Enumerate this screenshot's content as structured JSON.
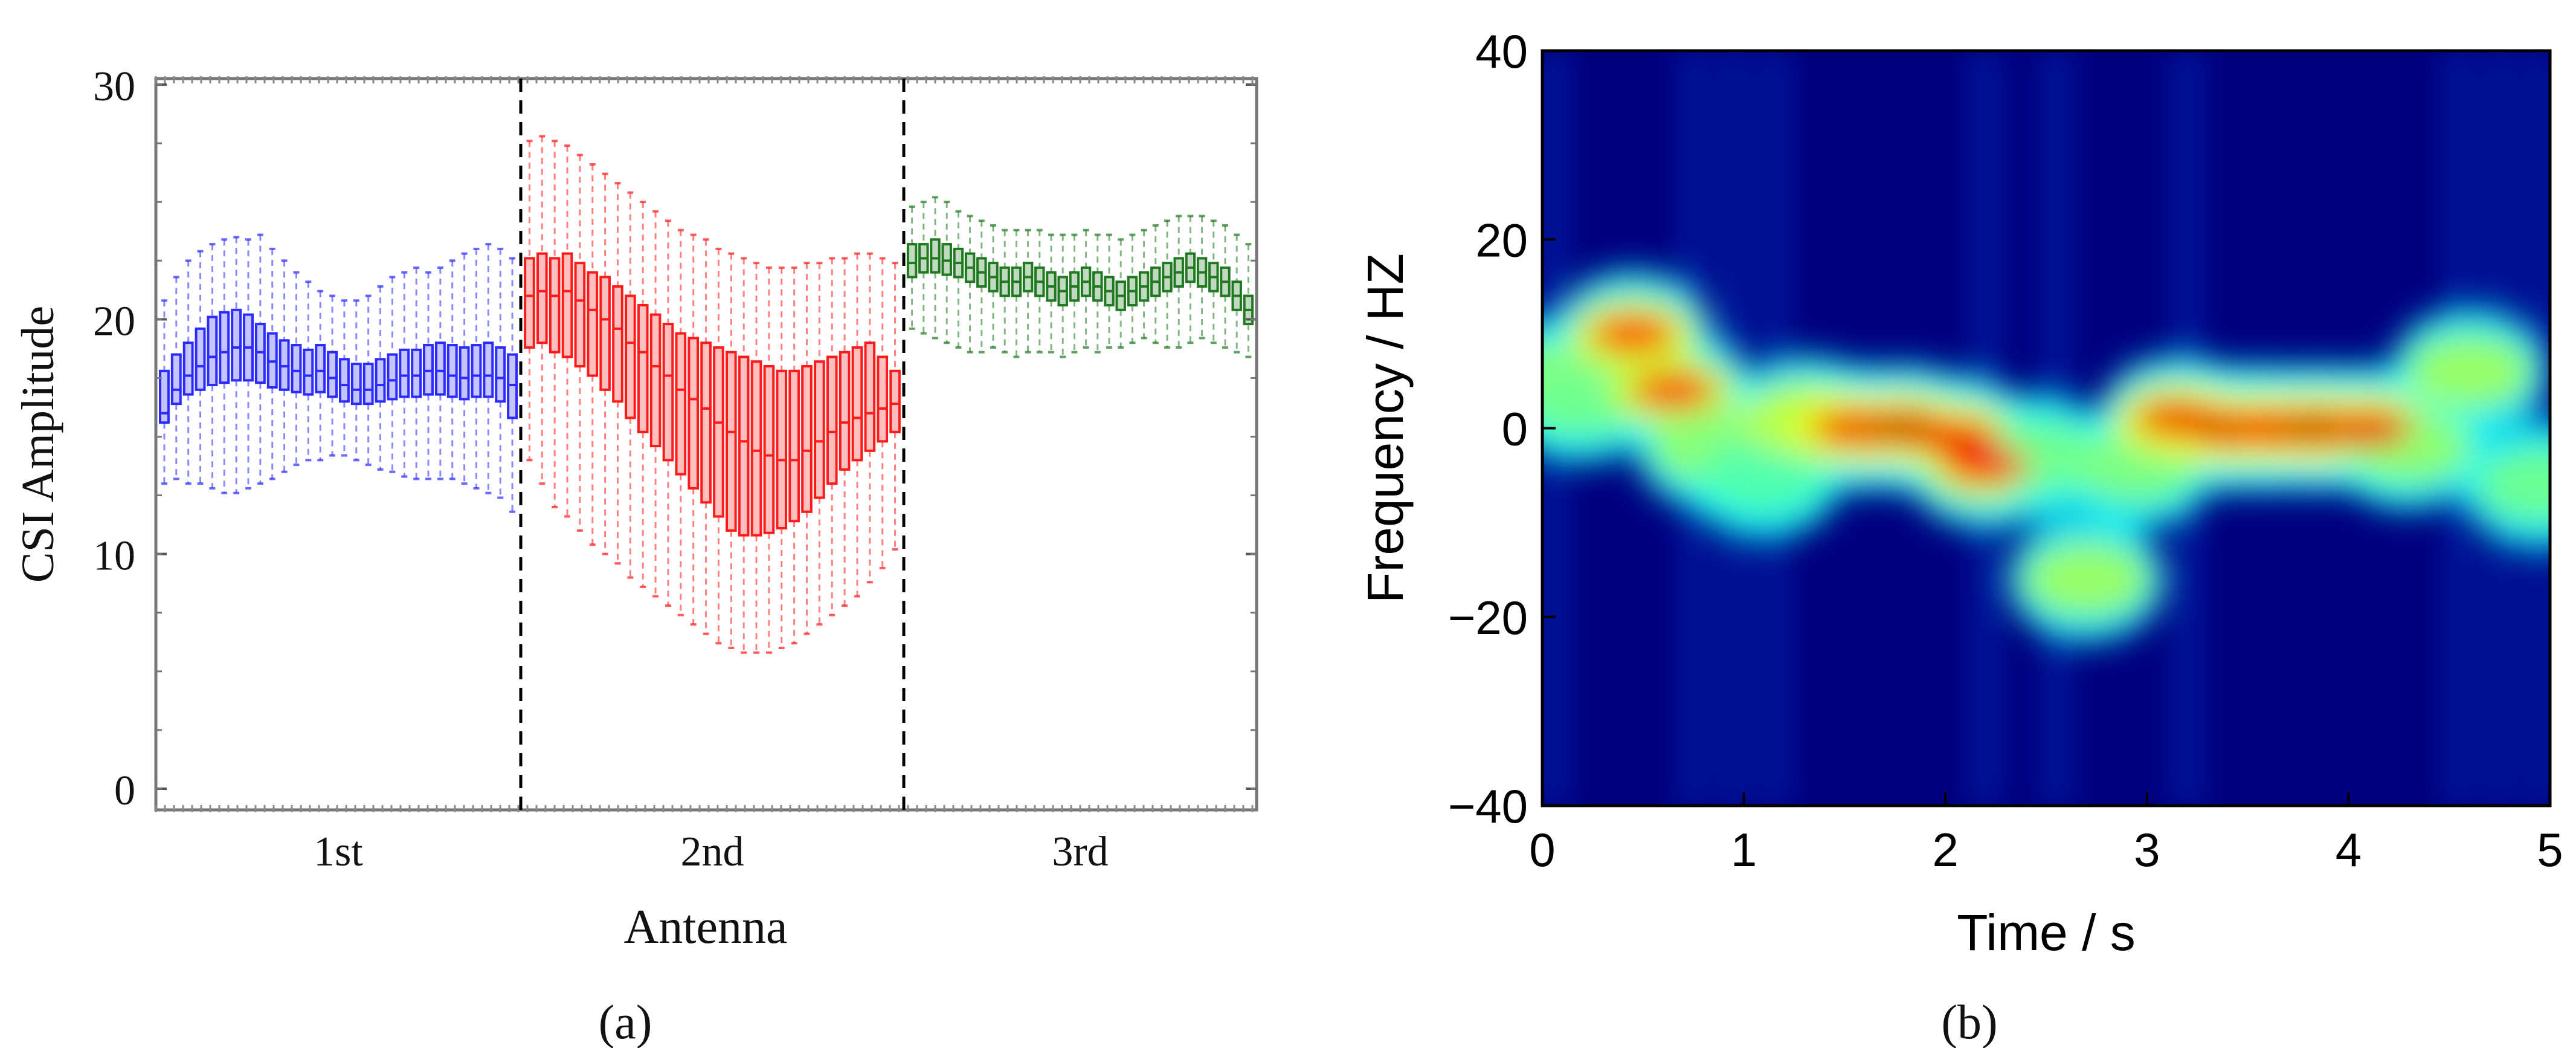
{
  "figure": {
    "panel_a_label": "(a)",
    "panel_b_label": "(b)"
  },
  "colors": {
    "antenna1": "#2b2bff",
    "antenna2": "#ff1a1a",
    "antenna3": "#1f7a1f",
    "spec_bg": "#00007f"
  },
  "chart_data": [
    {
      "type": "box",
      "title": "",
      "xlabel": "Antenna",
      "ylabel": "CSI Amplitude",
      "ylim": [
        0,
        30
      ],
      "yticks": [
        0,
        10,
        20,
        30
      ],
      "grid": false,
      "categories": [
        "1st",
        "2nd",
        "3rd"
      ],
      "boxes_per_group": 30,
      "series": [
        {
          "name": "1st",
          "color": "#2b2bff",
          "median": [
            16.0,
            17.0,
            17.6,
            18.0,
            18.4,
            18.6,
            18.8,
            18.8,
            18.6,
            18.2,
            18.0,
            17.8,
            17.6,
            17.8,
            17.5,
            17.2,
            17.0,
            17.0,
            17.2,
            17.4,
            17.6,
            17.6,
            17.8,
            17.8,
            17.6,
            17.5,
            17.6,
            17.6,
            17.5,
            17.2
          ],
          "q1": [
            15.6,
            16.4,
            16.8,
            17.0,
            17.2,
            17.3,
            17.4,
            17.4,
            17.3,
            17.1,
            17.0,
            16.9,
            16.8,
            16.9,
            16.7,
            16.5,
            16.4,
            16.4,
            16.5,
            16.6,
            16.7,
            16.7,
            16.8,
            16.8,
            16.7,
            16.6,
            16.7,
            16.7,
            16.5,
            15.8
          ],
          "q3": [
            17.8,
            18.5,
            19.0,
            19.6,
            20.1,
            20.3,
            20.4,
            20.2,
            19.8,
            19.4,
            19.1,
            18.9,
            18.7,
            18.9,
            18.6,
            18.3,
            18.1,
            18.1,
            18.3,
            18.5,
            18.7,
            18.7,
            18.9,
            19.0,
            18.9,
            18.8,
            18.9,
            19.0,
            18.8,
            18.5
          ],
          "whisker_low": [
            13.0,
            13.2,
            13.0,
            13.0,
            12.8,
            12.6,
            12.6,
            12.8,
            13.0,
            13.2,
            13.5,
            13.8,
            14.0,
            14.0,
            14.2,
            14.2,
            14.0,
            13.8,
            13.6,
            13.5,
            13.3,
            13.2,
            13.2,
            13.2,
            13.2,
            13.0,
            12.8,
            12.6,
            12.4,
            11.8
          ],
          "whisker_high": [
            20.8,
            21.8,
            22.5,
            22.9,
            23.2,
            23.4,
            23.5,
            23.4,
            23.6,
            23.0,
            22.5,
            22.0,
            21.6,
            21.2,
            21.0,
            20.8,
            20.8,
            21.0,
            21.4,
            21.8,
            22.0,
            22.2,
            22.0,
            22.2,
            22.5,
            22.8,
            23.0,
            23.2,
            23.0,
            22.6
          ]
        },
        {
          "name": "2nd",
          "color": "#ff1a1a",
          "median": [
            21.0,
            21.2,
            21.0,
            21.2,
            20.8,
            20.4,
            20.0,
            19.6,
            19.0,
            18.6,
            18.0,
            17.6,
            17.0,
            16.6,
            16.2,
            15.6,
            15.2,
            14.8,
            14.4,
            14.2,
            14.0,
            14.0,
            14.4,
            14.8,
            15.2,
            15.6,
            15.8,
            16.0,
            16.2,
            16.4
          ],
          "q1": [
            18.8,
            19.0,
            18.6,
            18.4,
            18.0,
            17.6,
            17.0,
            16.5,
            15.8,
            15.2,
            14.6,
            14.0,
            13.4,
            12.8,
            12.2,
            11.6,
            11.0,
            10.8,
            10.8,
            10.9,
            11.1,
            11.4,
            11.8,
            12.4,
            13.0,
            13.6,
            14.0,
            14.4,
            14.8,
            15.2
          ],
          "q3": [
            22.6,
            22.8,
            22.6,
            22.8,
            22.4,
            22.0,
            21.8,
            21.4,
            21.0,
            20.6,
            20.2,
            19.8,
            19.4,
            19.2,
            19.0,
            18.8,
            18.6,
            18.4,
            18.2,
            18.0,
            17.8,
            17.8,
            18.0,
            18.2,
            18.4,
            18.6,
            18.8,
            19.0,
            18.4,
            17.8
          ],
          "whisker_low": [
            14.0,
            13.0,
            12.0,
            11.6,
            11.0,
            10.4,
            10.0,
            9.6,
            9.0,
            8.6,
            8.2,
            7.8,
            7.4,
            7.0,
            6.6,
            6.2,
            6.0,
            5.8,
            5.8,
            5.8,
            6.0,
            6.2,
            6.6,
            7.0,
            7.4,
            7.8,
            8.2,
            8.8,
            9.4,
            10.2
          ],
          "whisker_high": [
            27.6,
            27.8,
            27.6,
            27.4,
            27.0,
            26.6,
            26.2,
            25.8,
            25.4,
            25.0,
            24.6,
            24.2,
            23.8,
            23.6,
            23.4,
            23.0,
            22.8,
            22.6,
            22.4,
            22.2,
            22.2,
            22.2,
            22.4,
            22.4,
            22.6,
            22.6,
            22.8,
            22.8,
            22.6,
            22.4
          ]
        },
        {
          "name": "3rd",
          "color": "#1f7a1f",
          "median": [
            22.4,
            22.6,
            22.6,
            22.5,
            22.4,
            22.2,
            22.0,
            21.8,
            21.6,
            21.6,
            21.8,
            21.6,
            21.4,
            21.2,
            21.4,
            21.6,
            21.4,
            21.2,
            21.0,
            21.2,
            21.4,
            21.6,
            21.8,
            22.0,
            22.2,
            22.0,
            21.8,
            21.6,
            21.0,
            20.4
          ],
          "q1": [
            21.8,
            22.0,
            22.0,
            21.9,
            21.8,
            21.6,
            21.4,
            21.2,
            21.0,
            21.0,
            21.2,
            21.0,
            20.8,
            20.6,
            20.8,
            21.0,
            20.8,
            20.6,
            20.4,
            20.6,
            20.8,
            21.0,
            21.2,
            21.4,
            21.6,
            21.4,
            21.2,
            21.0,
            20.4,
            19.8
          ],
          "q3": [
            23.2,
            23.2,
            23.4,
            23.2,
            23.0,
            22.8,
            22.6,
            22.4,
            22.2,
            22.2,
            22.4,
            22.2,
            22.0,
            21.8,
            22.0,
            22.2,
            22.0,
            21.8,
            21.6,
            21.8,
            22.0,
            22.2,
            22.4,
            22.6,
            22.8,
            22.6,
            22.4,
            22.2,
            21.6,
            21.0
          ],
          "whisker_low": [
            19.6,
            19.4,
            19.2,
            19.0,
            18.8,
            18.6,
            18.6,
            18.8,
            18.6,
            18.4,
            18.6,
            18.6,
            18.6,
            18.4,
            18.6,
            18.8,
            18.6,
            18.8,
            18.8,
            19.0,
            19.2,
            19.0,
            18.8,
            18.8,
            19.0,
            19.2,
            19.0,
            18.8,
            18.6,
            18.4
          ],
          "whisker_high": [
            24.8,
            25.0,
            25.2,
            25.0,
            24.6,
            24.4,
            24.2,
            24.0,
            23.8,
            23.8,
            23.8,
            23.8,
            23.6,
            23.6,
            23.6,
            23.8,
            23.6,
            23.6,
            23.4,
            23.6,
            23.8,
            24.0,
            24.2,
            24.4,
            24.4,
            24.4,
            24.2,
            24.0,
            23.6,
            23.2
          ]
        }
      ]
    },
    {
      "type": "heatmap",
      "title": "",
      "xlabel": "Time / s",
      "ylabel": "Frequency / HZ",
      "xlim": [
        0,
        5
      ],
      "ylim": [
        -40,
        40
      ],
      "xticks": [
        "0",
        "1",
        "2",
        "3",
        "4",
        "5"
      ],
      "xtick_values": [
        0,
        1,
        2,
        3,
        4,
        5
      ],
      "yticks": [
        "40",
        "20",
        "0",
        "−20",
        "−40"
      ],
      "ytick_values": [
        40,
        20,
        0,
        -20,
        -40
      ],
      "colormap": "jet",
      "energy_track": [
        {
          "t": 0.0,
          "f": 5,
          "intensity": 0.55
        },
        {
          "t": 0.2,
          "f": 3,
          "intensity": 0.45
        },
        {
          "t": 0.45,
          "f": 10,
          "intensity": 0.8
        },
        {
          "t": 0.65,
          "f": 4,
          "intensity": 0.75
        },
        {
          "t": 0.85,
          "f": -2,
          "intensity": 0.55
        },
        {
          "t": 1.1,
          "f": -5,
          "intensity": 0.35
        },
        {
          "t": 1.3,
          "f": 1,
          "intensity": 0.7
        },
        {
          "t": 1.55,
          "f": 0,
          "intensity": 0.85
        },
        {
          "t": 1.8,
          "f": 0,
          "intensity": 0.95
        },
        {
          "t": 2.05,
          "f": -1,
          "intensity": 0.85
        },
        {
          "t": 2.2,
          "f": -4,
          "intensity": 0.75
        },
        {
          "t": 2.45,
          "f": -3,
          "intensity": 0.45
        },
        {
          "t": 2.7,
          "f": -16,
          "intensity": 0.6
        },
        {
          "t": 2.95,
          "f": -4,
          "intensity": 0.5
        },
        {
          "t": 3.15,
          "f": 1,
          "intensity": 0.85
        },
        {
          "t": 3.4,
          "f": 0,
          "intensity": 0.9
        },
        {
          "t": 3.6,
          "f": 0,
          "intensity": 0.85
        },
        {
          "t": 3.85,
          "f": 0,
          "intensity": 0.95
        },
        {
          "t": 4.1,
          "f": 0,
          "intensity": 0.85
        },
        {
          "t": 4.3,
          "f": -2,
          "intensity": 0.55
        },
        {
          "t": 4.6,
          "f": 6,
          "intensity": 0.6
        },
        {
          "t": 4.95,
          "f": -6,
          "intensity": 0.45
        }
      ]
    }
  ]
}
